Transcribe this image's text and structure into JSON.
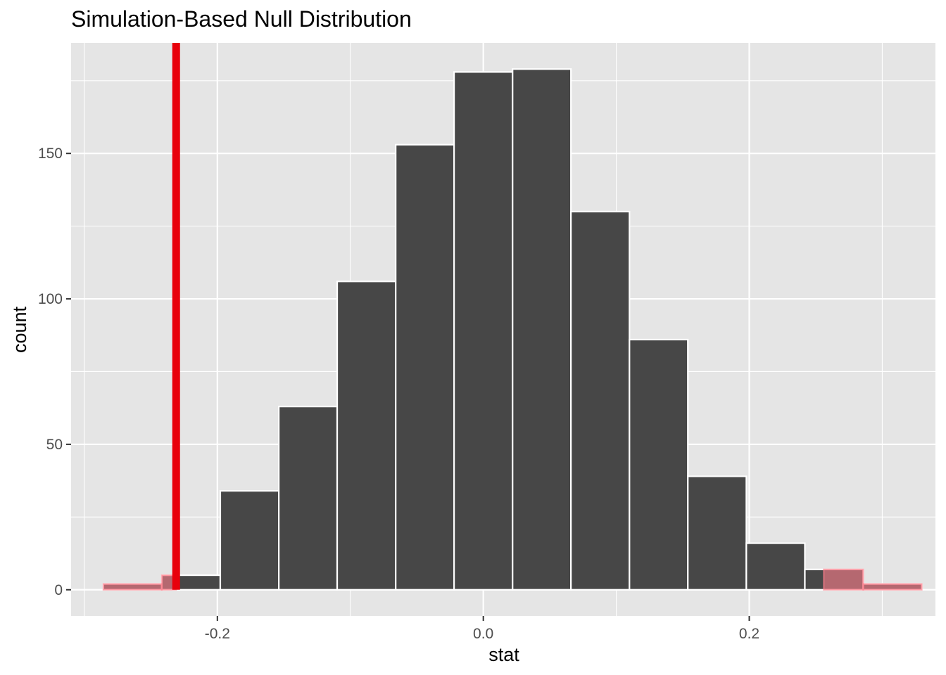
{
  "chart_data": {
    "type": "bar",
    "title": "Simulation-Based Null Distribution",
    "xlabel": "stat",
    "ylabel": "count",
    "xlim": [
      -0.31,
      0.34
    ],
    "ylim": [
      -9,
      188
    ],
    "x_ticks": [
      {
        "value": -0.2,
        "label": "-0.2"
      },
      {
        "value": 0.0,
        "label": "0.0"
      },
      {
        "value": 0.2,
        "label": "0.2"
      }
    ],
    "y_ticks": [
      {
        "value": 0,
        "label": "0"
      },
      {
        "value": 50,
        "label": "50"
      },
      {
        "value": 100,
        "label": "100"
      },
      {
        "value": 150,
        "label": "150"
      }
    ],
    "bins": [
      {
        "x0": -0.2857,
        "x1": -0.2418,
        "count": 2
      },
      {
        "x0": -0.2418,
        "x1": -0.1978,
        "count": 5
      },
      {
        "x0": -0.1978,
        "x1": -0.1538,
        "count": 34
      },
      {
        "x0": -0.1538,
        "x1": -0.1099,
        "count": 63
      },
      {
        "x0": -0.1099,
        "x1": -0.0659,
        "count": 106
      },
      {
        "x0": -0.0659,
        "x1": -0.022,
        "count": 153
      },
      {
        "x0": -0.022,
        "x1": 0.022,
        "count": 178
      },
      {
        "x0": 0.022,
        "x1": 0.0659,
        "count": 179
      },
      {
        "x0": 0.0659,
        "x1": 0.1099,
        "count": 130
      },
      {
        "x0": 0.1099,
        "x1": 0.1538,
        "count": 86
      },
      {
        "x0": 0.1538,
        "x1": 0.1978,
        "count": 39
      },
      {
        "x0": 0.1978,
        "x1": 0.2418,
        "count": 16
      },
      {
        "x0": 0.2418,
        "x1": 0.2857,
        "count": 7
      },
      {
        "x0": 0.2857,
        "x1": 0.3297,
        "count": 2
      }
    ],
    "observed_stat": -0.231,
    "shade_direction": "two-sided",
    "shaded_regions": [
      {
        "from": -0.31,
        "to": -0.231
      },
      {
        "from": 0.256,
        "to": 0.34
      }
    ],
    "colors": {
      "panel": "#e5e5e5",
      "grid": "#ffffff",
      "bar_fill": "#474747",
      "bar_outline": "#ffffff",
      "shade": "#ff7f8c",
      "observed_line": "#e8000b",
      "tick_text": "#4d4d4d"
    },
    "grid": true,
    "legend": "none"
  }
}
